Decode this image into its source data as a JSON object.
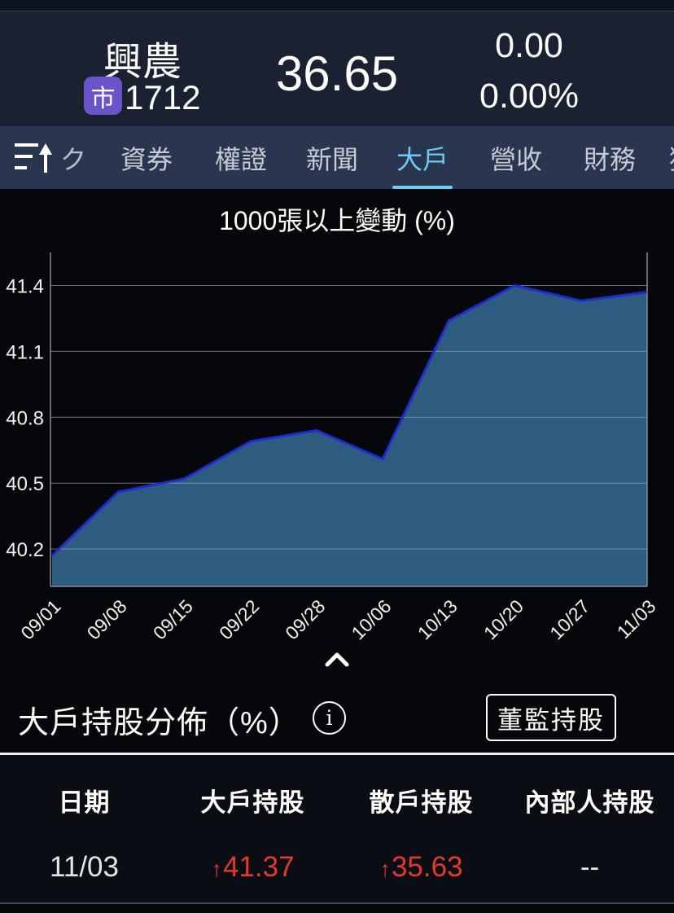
{
  "header": {
    "stock_name": "興農",
    "market_badge": "市",
    "stock_code": "1712",
    "price": "36.65",
    "change": "0.00",
    "change_percent": "0.00%"
  },
  "tabbar": {
    "sort_icon": "sort-ascending-icon",
    "partial_left_label": "ク",
    "tabs": [
      {
        "label": "資券",
        "active": false
      },
      {
        "label": "權證",
        "active": false
      },
      {
        "label": "新聞",
        "active": false
      },
      {
        "label": "大戶",
        "active": true
      },
      {
        "label": "營收",
        "active": false
      },
      {
        "label": "財務",
        "active": false
      },
      {
        "label": "獨",
        "active": false
      }
    ],
    "active_color": "#6ecbf2"
  },
  "chart_title": "1000張以上變動 (%)",
  "chart_data": {
    "type": "area",
    "title": "1000張以上變動 (%)",
    "categories": [
      "09/01",
      "09/08",
      "09/15",
      "09/22",
      "09/28",
      "10/06",
      "10/13",
      "10/20",
      "10/27",
      "11/03"
    ],
    "values": [
      40.17,
      40.46,
      40.52,
      40.69,
      40.74,
      40.61,
      41.24,
      41.4,
      41.33,
      41.37
    ],
    "y_ticks": [
      41.4,
      41.1,
      40.8,
      40.5,
      40.2
    ],
    "ylim": [
      40.03,
      41.55
    ],
    "grid": true,
    "legend": "none",
    "line_color": "#1c2bd4",
    "fill_color": "#2e5c80",
    "axis_color": "#8a8f98",
    "grid_color": "#9aa0a6",
    "unit": "%"
  },
  "collapse": {
    "icon": "chevron-up-icon"
  },
  "holders_section": {
    "title": "大戶持股分佈（%）",
    "info_icon_glyph": "i",
    "button_label": "董監持股"
  },
  "table": {
    "headers": [
      "日期",
      "大戶持股",
      "散戶持股",
      "內部人持股"
    ],
    "up_arrow": "↑",
    "up_color": "#e5382c",
    "rows": [
      {
        "date": "11/03",
        "major": "41.37",
        "major_dir": "up",
        "retail": "35.63",
        "retail_dir": "up",
        "insider": "--"
      }
    ]
  }
}
